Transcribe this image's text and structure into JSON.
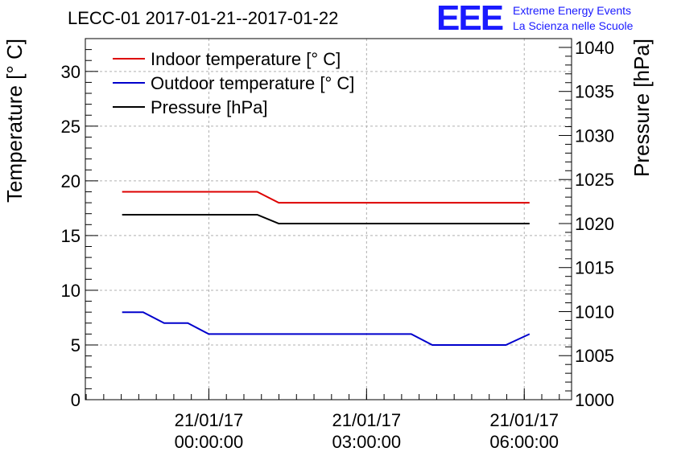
{
  "title": "LECC-01 2017-01-21--2017-01-22",
  "logo": {
    "mark": "EEE",
    "line1": "Extreme Energy Events",
    "line2": "La Scienza nelle Scuole"
  },
  "chart_data": {
    "type": "line",
    "title": "LECC-01 2017-01-21--2017-01-22",
    "xlabel": "",
    "ylabel_left": "Temperature [° C]",
    "ylabel_right": "Pressure [hPa]",
    "xlim_hours": [
      -2.35,
      6.9
    ],
    "ylim_left": [
      0,
      33
    ],
    "ylim_right": [
      1000,
      1041
    ],
    "grid": true,
    "legend_position": "top-left",
    "x_ticks": [
      {
        "hour": 0,
        "line1": "21/01/17",
        "line2": "00:00:00"
      },
      {
        "hour": 3,
        "line1": "21/01/17",
        "line2": "03:00:00"
      },
      {
        "hour": 6,
        "line1": "21/01/17",
        "line2": "06:00:00"
      }
    ],
    "left_ticks": [
      0,
      5,
      10,
      15,
      20,
      25,
      30
    ],
    "right_ticks": [
      1000,
      1005,
      1010,
      1015,
      1020,
      1025,
      1030,
      1035,
      1040
    ],
    "series": [
      {
        "name": "Indoor temperature [° C]",
        "axis": "left",
        "color": "#dd0000",
        "x": [
          -1.65,
          0.92,
          1.33,
          6.1
        ],
        "y": [
          19,
          19,
          18,
          18
        ]
      },
      {
        "name": "Outdoor temperature [° C]",
        "axis": "left",
        "color": "#0000cc",
        "x": [
          -1.65,
          -1.25,
          -0.85,
          -0.4,
          0,
          3.85,
          4.25,
          5.65,
          6.1
        ],
        "y": [
          8,
          8,
          7,
          7,
          6,
          6,
          5,
          5,
          6
        ]
      },
      {
        "name": "Pressure [hPa]",
        "axis": "right",
        "color": "#000000",
        "x": [
          -1.65,
          0.92,
          1.33,
          6.1
        ],
        "y": [
          1021,
          1021,
          1020,
          1020
        ]
      }
    ]
  }
}
